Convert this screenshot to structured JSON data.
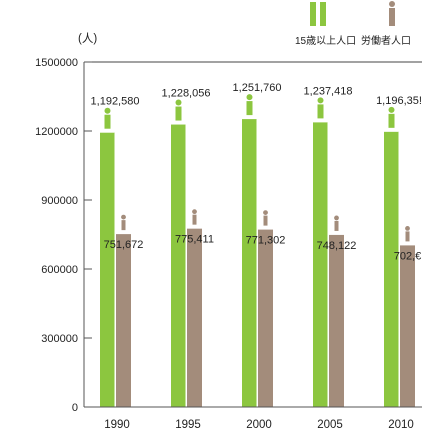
{
  "chart_data": {
    "type": "bar",
    "unit_label": "(人)",
    "categories": [
      "1990",
      "1995",
      "2000",
      "2005",
      "2010"
    ],
    "series": [
      {
        "name": "15歳以上人口",
        "color": "#8cc63f",
        "values": [
          1192580,
          1228056,
          1251760,
          1237418,
          1196353
        ],
        "labels": [
          "1,192,580",
          "1,228,056",
          "1,251,760",
          "1,237,418",
          "1,196,35!"
        ]
      },
      {
        "name": "労働者人口",
        "color": "#a38c7b",
        "values": [
          751672,
          775411,
          771302,
          748122,
          702600
        ],
        "labels": [
          "751,672",
          "775,411",
          "771,302",
          "748,122",
          "702,€"
        ]
      }
    ],
    "y_ticks": [
      "1500000",
      "1200000",
      "900000",
      "600000",
      "300000",
      "0"
    ],
    "ylim": [
      0,
      1500000
    ],
    "legend_position": "top-right",
    "icons": {
      "green_series": "person-figure-icon",
      "brown_series": "person-figure-icon"
    }
  }
}
